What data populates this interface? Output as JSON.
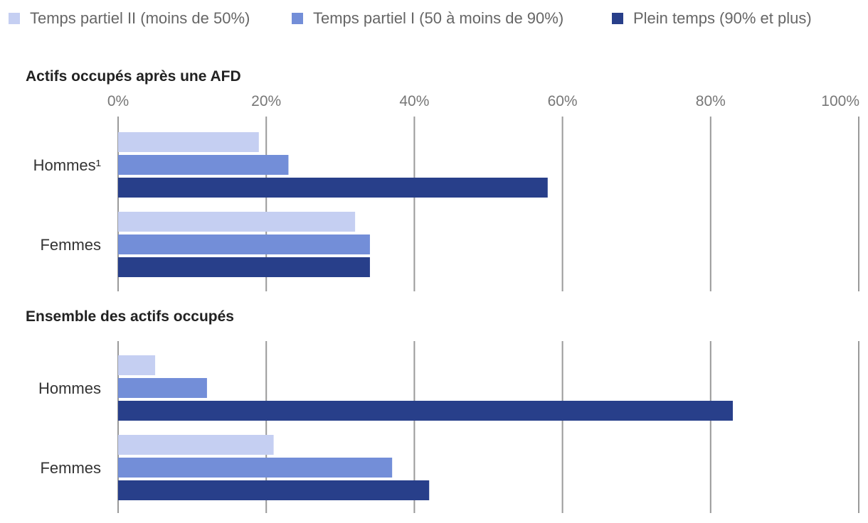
{
  "chart_data": {
    "type": "bar",
    "orientation": "horizontal",
    "legend": {
      "position": "top-left",
      "items": [
        {
          "label": "Temps partiel II (moins de 50%)",
          "color": "#c5cff2"
        },
        {
          "label": "Temps partiel I (50 à moins de 90%)",
          "color": "#738ed8"
        },
        {
          "label": "Plein temps (90% et plus)",
          "color": "#283f8a"
        }
      ]
    },
    "xlim": [
      0,
      100
    ],
    "ticks": [
      "0%",
      "20%",
      "40%",
      "60%",
      "80%",
      "100%"
    ],
    "tick_values": [
      0,
      20,
      40,
      60,
      80,
      100
    ],
    "grid": true,
    "panels": [
      {
        "title": "Actifs occupés après une AFD",
        "categories": [
          "Hommes¹",
          "Femmes"
        ],
        "series": [
          {
            "name": "Temps partiel II (moins de 50%)",
            "values": [
              19,
              32
            ]
          },
          {
            "name": "Temps partiel I (50 à moins de 90%)",
            "values": [
              23,
              34
            ]
          },
          {
            "name": "Plein temps (90% et plus)",
            "values": [
              58,
              34
            ]
          }
        ]
      },
      {
        "title": "Ensemble des actifs occupés",
        "categories": [
          "Hommes",
          "Femmes"
        ],
        "series": [
          {
            "name": "Temps partiel II (moins de 50%)",
            "values": [
              5,
              21
            ]
          },
          {
            "name": "Temps partiel I (50 à moins de 90%)",
            "values": [
              12,
              37
            ]
          },
          {
            "name": "Plein temps (90% et plus)",
            "values": [
              83,
              42
            ]
          }
        ]
      }
    ]
  }
}
